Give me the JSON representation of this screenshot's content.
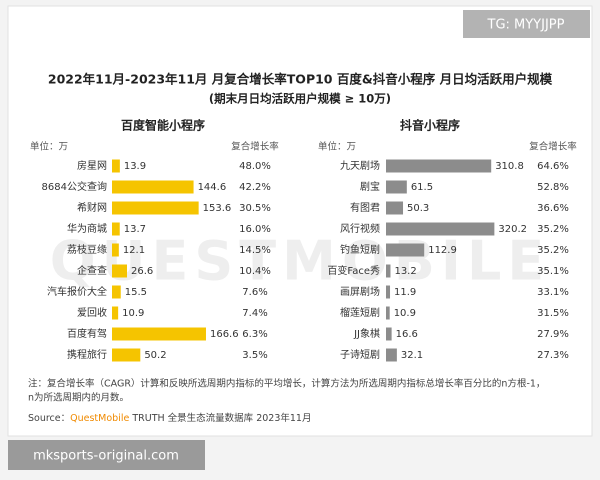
{
  "header": {
    "title": "2022年11月-2023年11月 月复合增长率TOP10 百度&抖音小程序 月日均活跃用户规模",
    "subtitle": "(期末月日均活跃用户规模 ≥ 10万)"
  },
  "tag": "TG: MYYJJPP",
  "site": "mksports-original.com",
  "watermark": "QUESTMOBILE",
  "footnote": [
    "注：复合增长率（CAGR）计算和反映所选周期内指标的平均增长，计算方法为所选周期内指标总增长率百分比的n方根-1，",
    "n为所选周期内的月数。"
  ],
  "source": {
    "prefix": "Source：",
    "brand": "QuestMobile",
    "text": " TRUTH 全景生态流量数据库 2023年11月"
  },
  "chart_data": [
    {
      "type": "bar",
      "orientation": "horizontal",
      "title": "百度智能小程序",
      "unit_label": "单位：万",
      "growth_header": "复合增长率",
      "categories": [
        "房星网",
        "8684公交查询",
        "希财网",
        "华为商城",
        "荔枝豆缘",
        "企查查",
        "汽车报价大全",
        "爱回收",
        "百度有驾",
        "携程旅行"
      ],
      "values": [
        13.9,
        144.6,
        153.6,
        13.7,
        12.1,
        26.6,
        15.5,
        10.9,
        166.6,
        50.2
      ],
      "color": "#f5c400",
      "xlim": [
        0,
        195
      ],
      "growth": {
        "values": [
          48.0,
          42.2,
          30.5,
          16.0,
          14.5,
          10.4,
          7.6,
          7.4,
          6.3,
          3.5
        ],
        "value_labels": [
          "48.0%",
          "42.2%",
          "30.5%",
          "16.0%",
          "14.5%",
          "10.4%",
          "7.6%",
          "7.4%",
          "6.3%",
          "3.5%"
        ]
      }
    },
    {
      "type": "bar",
      "orientation": "horizontal",
      "title": "抖音小程序",
      "unit_label": "单位：万",
      "growth_header": "复合增长率",
      "categories": [
        "九天剧场",
        "剧宝",
        "有图君",
        "风行视频",
        "钓鱼短剧",
        "百变Face秀",
        "画屏剧场",
        "榴莲短剧",
        "JJ象棋",
        "子诗短剧"
      ],
      "values": [
        310.8,
        61.5,
        50.3,
        320.2,
        112.9,
        13.2,
        11.9,
        10.9,
        16.6,
        32.1
      ],
      "color": "#8c8c8c",
      "xlim": [
        0,
        325
      ],
      "growth": {
        "values": [
          64.6,
          52.8,
          36.6,
          35.2,
          35.2,
          35.1,
          33.1,
          31.5,
          27.9,
          27.3
        ],
        "value_labels": [
          "64.6%",
          "52.8%",
          "36.6%",
          "35.2%",
          "35.2%",
          "35.1%",
          "33.1%",
          "31.5%",
          "27.9%",
          "27.3%"
        ]
      }
    }
  ]
}
